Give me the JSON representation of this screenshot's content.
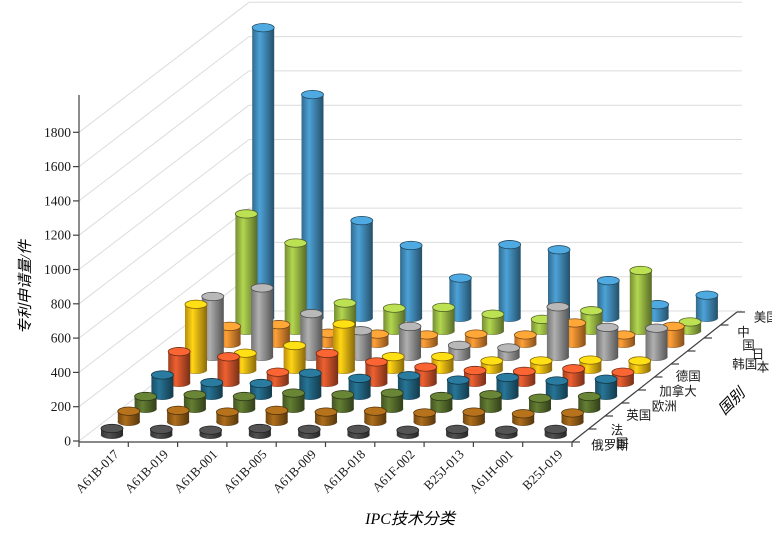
{
  "figure": {
    "background": "#ffffff"
  },
  "chart_data": {
    "type": "bar",
    "variant": "3d-cylinder",
    "title": "",
    "xlabel": "IPC技术分类",
    "ylabel": "专利申请量/件",
    "zlabel": "国别",
    "ylim": [
      0,
      1800
    ],
    "ytick_step": 200,
    "grid": true,
    "legend_position": "depth-axis-right",
    "ytick_labels": [
      "0",
      "200",
      "400",
      "600",
      "800",
      "1000",
      "1200",
      "1400",
      "1600",
      "1800"
    ],
    "categories": [
      "A61B-017",
      "A61B-019",
      "A61B-001",
      "A61B-005",
      "A61B-009",
      "A61B-018",
      "A61F-002",
      "B25J-013",
      "A61H-001",
      "B25J-019"
    ],
    "series": [
      {
        "name": "俄罗斯",
        "color": "#424242",
        "values": [
          35,
          30,
          25,
          35,
          30,
          30,
          25,
          30,
          25,
          30
        ]
      },
      {
        "name": "法国",
        "color": "#8F5A16",
        "values": [
          60,
          65,
          55,
          65,
          55,
          60,
          50,
          55,
          45,
          50
        ]
      },
      {
        "name": "英国",
        "color": "#52682A",
        "values": [
          70,
          80,
          70,
          90,
          80,
          90,
          70,
          80,
          60,
          70
        ]
      },
      {
        "name": "欧洲",
        "color": "#20607C",
        "values": [
          120,
          75,
          70,
          130,
          100,
          115,
          90,
          105,
          85,
          95
        ]
      },
      {
        "name": "加拿大",
        "color": "#C44F28",
        "values": [
          180,
          150,
          60,
          170,
          120,
          90,
          70,
          65,
          80,
          60
        ]
      },
      {
        "name": "德国",
        "color": "#E8AF10",
        "values": [
          380,
          95,
          140,
          265,
          75,
          75,
          50,
          50,
          55,
          50
        ]
      },
      {
        "name": "韩国",
        "color": "#909090",
        "values": [
          350,
          400,
          250,
          150,
          175,
          65,
          50,
          290,
          170,
          165
        ]
      },
      {
        "name": "日本",
        "color": "#E0832C",
        "values": [
          100,
          110,
          60,
          55,
          50,
          55,
          50,
          120,
          50,
          100
        ]
      },
      {
        "name": "中国",
        "color": "#93B041",
        "values": [
          680,
          510,
          160,
          130,
          135,
          95,
          65,
          115,
          350,
          50
        ]
      },
      {
        "name": "美国",
        "color": "#3E85B0",
        "values": [
          1690,
          1300,
          565,
          420,
          230,
          425,
          395,
          215,
          75,
          130
        ]
      }
    ]
  }
}
